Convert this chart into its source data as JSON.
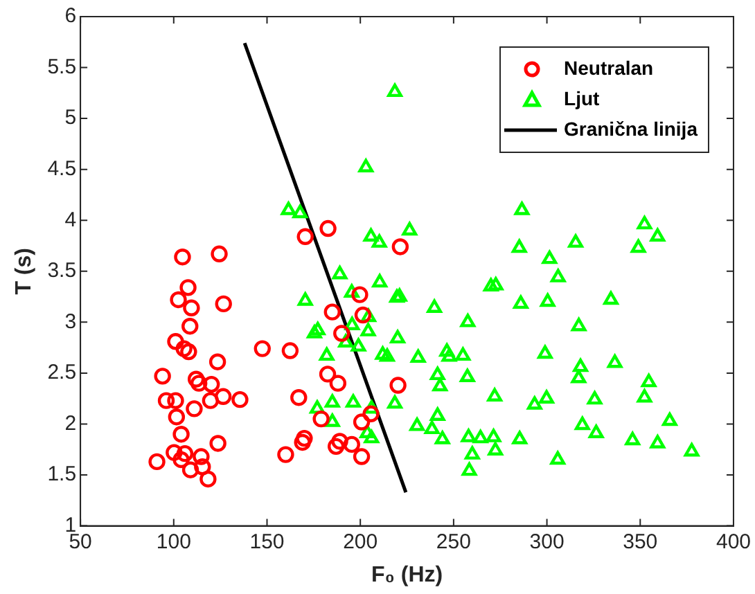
{
  "chart_data": {
    "type": "scatter",
    "xlabel": "F₀ (Hz)",
    "ylabel": "T (s)",
    "xlim": [
      50,
      400
    ],
    "ylim": [
      1,
      6
    ],
    "xticks": [
      50,
      100,
      150,
      200,
      250,
      300,
      350,
      400
    ],
    "yticks": [
      1,
      1.5,
      2,
      2.5,
      3,
      3.5,
      4,
      4.5,
      5,
      5.5,
      6
    ],
    "grid": false,
    "legend": "top right",
    "series": [
      {
        "name": "Neutralan",
        "color": "#ff0000",
        "marker": "circle",
        "x": [
          104.7,
          124.4,
          107.7,
          102.5,
          109.5,
          126.7,
          108.7,
          101,
          105.5,
          108,
          123.5,
          147.5,
          162.4,
          94,
          112,
          113.5,
          120.2,
          96,
          101,
          119.7,
          126.5,
          135.5,
          111,
          101.5,
          104,
          123.7,
          100.2,
          106,
          104,
          91,
          114.7,
          115.4,
          109,
          118.4,
          167,
          160,
          169,
          170,
          170.5,
          182.7,
          199.7,
          185,
          201.4,
          190,
          182.5,
          188,
          179,
          200.7,
          205.7,
          189,
          187,
          195.4,
          200.7,
          221.4,
          220.2
        ],
        "values": [
          3.64,
          3.67,
          3.34,
          3.22,
          3.14,
          3.18,
          2.96,
          2.81,
          2.74,
          2.71,
          2.61,
          2.74,
          2.72,
          2.47,
          2.44,
          2.4,
          2.39,
          2.23,
          2.23,
          2.23,
          2.27,
          2.24,
          2.15,
          2.07,
          1.9,
          1.81,
          1.72,
          1.71,
          1.65,
          1.63,
          1.68,
          1.58,
          1.55,
          1.46,
          2.26,
          1.7,
          1.82,
          1.86,
          3.84,
          3.92,
          3.27,
          3.1,
          3.07,
          2.89,
          2.49,
          2.4,
          2.05,
          2.02,
          2.1,
          1.83,
          1.78,
          1.8,
          1.68,
          3.74,
          2.38
        ]
      },
      {
        "name": "Ljut",
        "color": "#00ff00",
        "marker": "triangle",
        "x": [
          161.5,
          167.7,
          205.7,
          210.2,
          189,
          210.4,
          195.4,
          170.5,
          204.4,
          195.6,
          204.2,
          177.2,
          175.4,
          192.2,
          199,
          212,
          214.4,
          182,
          176.9,
          185,
          185,
          196.2,
          206,
          203.7,
          206,
          218.5,
          219.6,
          220,
          226.4,
          221,
          239.7,
          257.6,
          231,
          246.4,
          247.6,
          255,
          241.4,
          242.7,
          257.4,
          272,
          230.4,
          241.4,
          238.4,
          244,
          258,
          264.4,
          271.4,
          272.4,
          285.4,
          260,
          258.4,
          286.6,
          285.2,
          286,
          272.6,
          270,
          352.3,
          359.3,
          349,
          315.4,
          301.4,
          306,
          300.4,
          334.3,
          317.1,
          299,
          318,
          317,
          336.4,
          354.6,
          352.3,
          293.4,
          299.8,
          325.6,
          319,
          326.4,
          365.8,
          345.9,
          359.3,
          377.6,
          305.8,
          218.5,
          203
        ],
        "values": [
          4.1,
          4.07,
          3.84,
          3.78,
          3.47,
          3.39,
          3.29,
          3.21,
          3.05,
          2.97,
          2.91,
          2.92,
          2.89,
          2.8,
          2.76,
          2.68,
          2.66,
          2.67,
          2.15,
          2.21,
          2.02,
          2.21,
          2.15,
          1.91,
          1.86,
          2.2,
          3.24,
          2.84,
          3.9,
          3.25,
          3.14,
          3,
          2.65,
          2.71,
          2.66,
          2.67,
          2.48,
          2.37,
          2.46,
          2.27,
          1.98,
          2.08,
          1.95,
          1.85,
          1.87,
          1.86,
          1.87,
          1.74,
          1.85,
          1.7,
          1.54,
          4.1,
          3.73,
          3.18,
          3.36,
          3.35,
          3.96,
          3.84,
          3.73,
          3.78,
          3.62,
          3.44,
          3.2,
          3.22,
          2.96,
          2.69,
          2.56,
          2.45,
          2.6,
          2.41,
          2.26,
          2.19,
          2.25,
          2.24,
          1.99,
          1.91,
          2.03,
          1.84,
          1.81,
          1.73,
          1.65,
          5.26,
          4.52
        ]
      },
      {
        "name": "Granična linija",
        "color": "#000000",
        "type": "line",
        "marker": "none",
        "line_style": "solid",
        "x": [
          138,
          224.4
        ],
        "values": [
          5.74,
          1.33
        ]
      }
    ]
  }
}
